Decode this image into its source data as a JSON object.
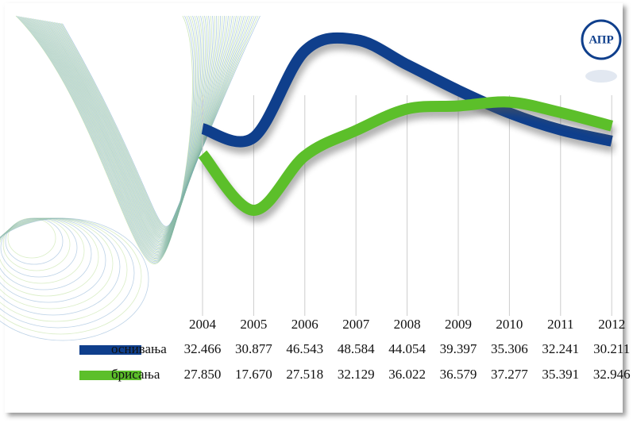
{
  "logo": "АПР",
  "chart_data": {
    "type": "line",
    "categories": [
      "2004",
      "2005",
      "2006",
      "2007",
      "2008",
      "2009",
      "2010",
      "2011",
      "2012"
    ],
    "series": [
      {
        "name": "оснивања",
        "color": "#0f3f8c",
        "values": [
          32466,
          30877,
          46543,
          48584,
          44054,
          39397,
          35306,
          32241,
          30211
        ],
        "value_labels": [
          "32.466",
          "30.877",
          "46.543",
          "48.584",
          "44.054",
          "39.397",
          "35.306",
          "32.241",
          "30.211"
        ]
      },
      {
        "name": "брисања",
        "color": "#5cbf2a",
        "values": [
          27850,
          17670,
          27518,
          32129,
          36022,
          36579,
          37277,
          35391,
          32946
        ],
        "value_labels": [
          "27.850",
          "17.670",
          "27.518",
          "32.129",
          "36.022",
          "36.579",
          "37.277",
          "35.391",
          "32.946"
        ]
      }
    ],
    "grid": true
  }
}
